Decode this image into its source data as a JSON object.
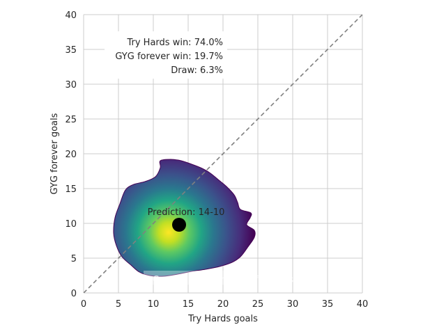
{
  "chart_data": {
    "type": "heatmap",
    "xlabel": "Try Hards goals",
    "ylabel": "GYG forever goals",
    "xlim": [
      0,
      40
    ],
    "ylim": [
      0,
      40
    ],
    "xticks": [
      "0",
      "5",
      "10",
      "15",
      "20",
      "25",
      "30",
      "35",
      "40"
    ],
    "yticks": [
      "0",
      "5",
      "10",
      "15",
      "20",
      "25",
      "30",
      "35",
      "40"
    ],
    "grid": true,
    "colormap": "viridis",
    "density_peak": [
      12.5,
      9
    ],
    "diagonal": {
      "from": [
        0,
        0
      ],
      "to": [
        40,
        40
      ],
      "style": "dashed",
      "color": "#808080"
    },
    "outcome_text": {
      "win_a": "Try Hards win: 74.0%",
      "win_b": "GYG forever win: 19.7%",
      "draw": "Draw: 6.3%"
    },
    "prediction": {
      "label": "Prediction: 14-10",
      "point": [
        13.7,
        9.8
      ],
      "color": "#000000"
    },
    "watermark": "Created by Michael Nefiodovas",
    "density_outline": [
      [
        11.0,
        19.0
      ],
      [
        12.5,
        19.2
      ],
      [
        14.0,
        19.0
      ],
      [
        15.5,
        18.5
      ],
      [
        17.0,
        17.9
      ],
      [
        18.2,
        17.2
      ],
      [
        19.3,
        16.3
      ],
      [
        20.5,
        15.3
      ],
      [
        21.6,
        14.1
      ],
      [
        22.1,
        13.0
      ],
      [
        22.5,
        12.0
      ],
      [
        24.0,
        11.5
      ],
      [
        23.9,
        10.8
      ],
      [
        23.4,
        9.8
      ],
      [
        24.5,
        9.0
      ],
      [
        24.5,
        8.0
      ],
      [
        23.5,
        6.5
      ],
      [
        22.5,
        5.2
      ],
      [
        21.3,
        4.4
      ],
      [
        19.5,
        3.8
      ],
      [
        17.5,
        3.4
      ],
      [
        15.5,
        3.1
      ],
      [
        13.5,
        2.7
      ],
      [
        11.5,
        2.4
      ],
      [
        9.5,
        2.5
      ],
      [
        8.0,
        3.0
      ],
      [
        6.8,
        4.0
      ],
      [
        5.5,
        5.2
      ],
      [
        4.7,
        6.8
      ],
      [
        4.3,
        8.6
      ],
      [
        4.5,
        10.8
      ],
      [
        5.2,
        12.8
      ],
      [
        6.0,
        14.8
      ],
      [
        7.2,
        15.6
      ],
      [
        8.8,
        16.0
      ],
      [
        10.3,
        16.7
      ],
      [
        11.0,
        18.0
      ]
    ]
  }
}
